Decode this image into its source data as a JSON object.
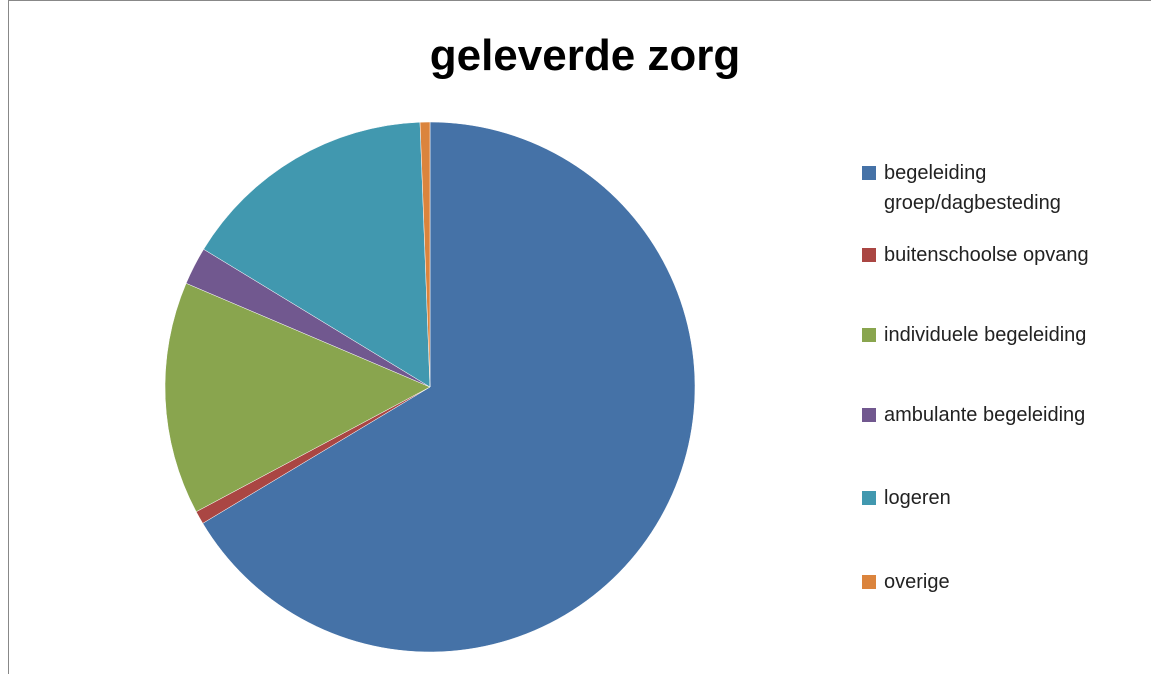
{
  "chart_data": {
    "type": "pie",
    "title": "geleverde zorg",
    "categories": [
      "begeleiding groep/dagbesteding",
      "buitenschoolse opvang",
      "individuele begeleiding",
      "ambulante begeleiding",
      "logeren",
      "overige"
    ],
    "values": [
      66.4,
      0.8,
      14.2,
      2.3,
      15.7,
      0.6
    ],
    "colors": [
      "#4572a7",
      "#aa4643",
      "#89a54e",
      "#71588f",
      "#4198af",
      "#db843d"
    ],
    "legend": "right"
  }
}
